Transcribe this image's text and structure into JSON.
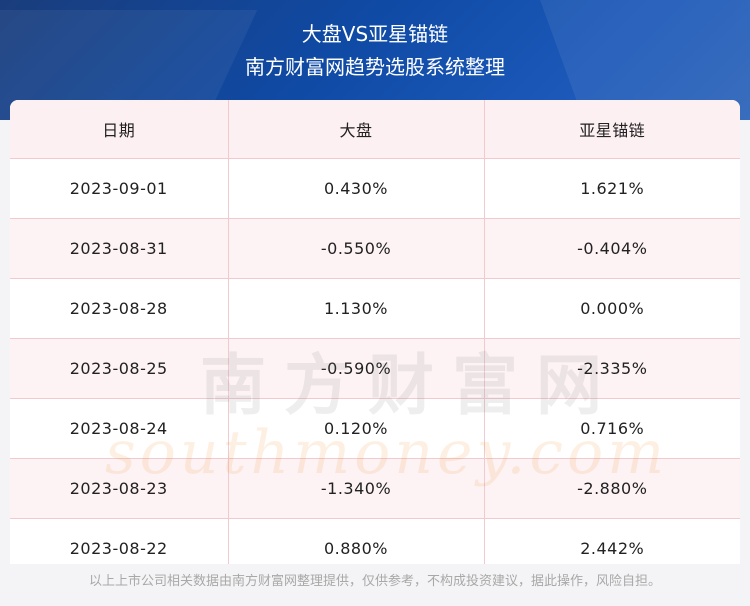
{
  "header": {
    "title_line1": "大盘VS亚星锚链",
    "title_line2": "南方财富网趋势选股系统整理"
  },
  "table": {
    "columns": [
      "日期",
      "大盘",
      "亚星锚链"
    ],
    "rows": [
      [
        "2023-09-01",
        "0.430%",
        "1.621%"
      ],
      [
        "2023-08-31",
        "-0.550%",
        "-0.404%"
      ],
      [
        "2023-08-28",
        "1.130%",
        "0.000%"
      ],
      [
        "2023-08-25",
        "-0.590%",
        "-2.335%"
      ],
      [
        "2023-08-24",
        "0.120%",
        "0.716%"
      ],
      [
        "2023-08-23",
        "-1.340%",
        "-2.880%"
      ],
      [
        "2023-08-22",
        "0.880%",
        "2.442%"
      ]
    ]
  },
  "watermark": {
    "cn": "南方财富网",
    "en": "southmoney.com"
  },
  "footer": {
    "disclaimer": "以上上市公司相关数据由南方财富网整理提供，仅供参考，不构成投资建议，据此操作，风险自担。"
  }
}
